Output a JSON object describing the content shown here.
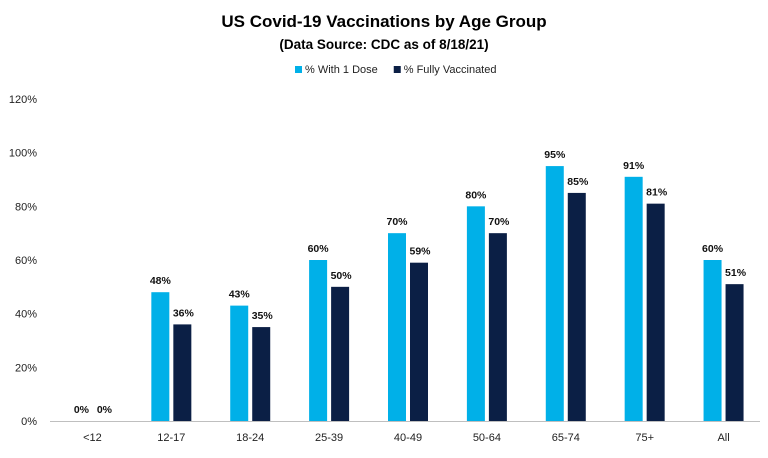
{
  "chart_data": {
    "type": "bar",
    "title": "US Covid-19 Vaccinations by Age Group",
    "subtitle": "(Data Source: CDC as of 8/18/21)",
    "xlabel": "",
    "ylabel": "",
    "categories": [
      "<12",
      "12-17",
      "18-24",
      "25-39",
      "40-49",
      "50-64",
      "65-74",
      "75+",
      "All"
    ],
    "series": [
      {
        "name": "% With 1 Dose",
        "color": "#00b0e8",
        "values": [
          0,
          48,
          43,
          60,
          70,
          80,
          95,
          91,
          60
        ],
        "labels": [
          "0%",
          "48%",
          "43%",
          "60%",
          "70%",
          "80%",
          "95%",
          "91%",
          "60%"
        ]
      },
      {
        "name": "% Fully Vaccinated",
        "color": "#0b1f45",
        "values": [
          0,
          36,
          35,
          50,
          59,
          70,
          85,
          81,
          51
        ],
        "labels": [
          "0%",
          "36%",
          "35%",
          "50%",
          "59%",
          "70%",
          "85%",
          "81%",
          "51%"
        ]
      }
    ],
    "ylim": [
      0,
      120
    ],
    "yticks": [
      0,
      20,
      40,
      60,
      80,
      100,
      120
    ],
    "ytick_labels": [
      "0%",
      "20%",
      "40%",
      "60%",
      "80%",
      "100%",
      "120%"
    ],
    "grid": false,
    "legend_position": "top"
  }
}
